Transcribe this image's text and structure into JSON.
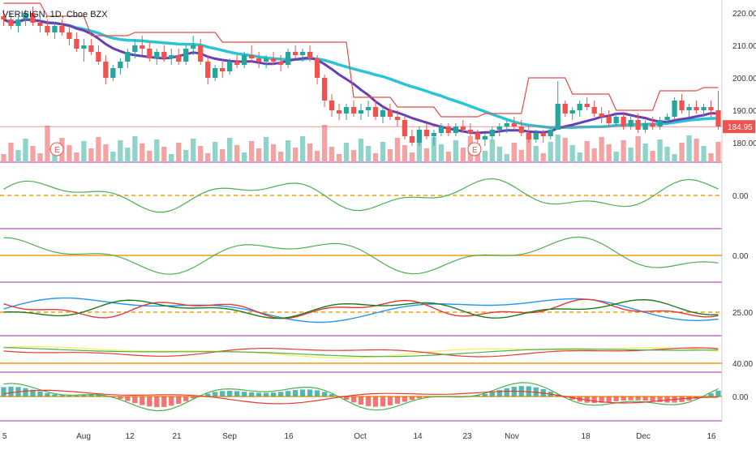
{
  "colors": {
    "up": "#26a69a",
    "down": "#ef5350",
    "vol_up": "#8fd3cb",
    "vol_down": "#f4a3a3",
    "ma_fast": "#6a3fb5",
    "ma_slow": "#2bc4d6",
    "trail": "#e84a4a",
    "support": "#26a65b",
    "divider": "#9c27b0",
    "zero_dash": "#f39c12",
    "osc_green": "#4caf50",
    "orange": "#f39c12",
    "blue": "#2196f3",
    "red": "#e53935",
    "dark_green": "#1b7a1b",
    "yellow": "#f5f06a",
    "price_label": "#ef5350"
  },
  "header": {
    "symbol": "VERISIGN, 1D, Cboe BZX"
  },
  "price_tag": "184.95",
  "time_axis": [
    "5",
    "Aug",
    "12",
    "21",
    "Sep",
    "16",
    "Oct",
    "14",
    "23",
    "Nov",
    "18",
    "Dec",
    "16"
  ],
  "earnings": [
    {
      "label": "E"
    },
    {
      "label": "E"
    }
  ],
  "chart_data": [
    {
      "type": "candlestick",
      "title": "VERISIGN, 1D, Cboe BZX",
      "y_ticks": [
        180,
        190,
        200,
        210,
        220
      ],
      "ylim": [
        174,
        224
      ],
      "last_price": 184.95,
      "candles": [
        [
          219,
          221,
          216,
          218
        ],
        [
          218,
          220,
          215,
          216
        ],
        [
          216,
          219,
          214,
          218
        ],
        [
          218,
          221,
          216,
          220
        ],
        [
          220,
          222,
          216,
          217
        ],
        [
          217,
          219,
          214,
          216
        ],
        [
          216,
          218,
          213,
          214
        ],
        [
          214,
          217,
          212,
          216
        ],
        [
          216,
          218,
          213,
          214
        ],
        [
          214,
          216,
          210,
          212
        ],
        [
          212,
          214,
          208,
          209
        ],
        [
          209,
          212,
          205,
          210
        ],
        [
          210,
          212,
          207,
          208
        ],
        [
          208,
          210,
          204,
          205
        ],
        [
          205,
          207,
          198,
          200
        ],
        [
          200,
          204,
          199,
          203
        ],
        [
          203,
          206,
          201,
          205
        ],
        [
          205,
          209,
          203,
          208
        ],
        [
          208,
          212,
          206,
          210
        ],
        [
          210,
          213,
          207,
          209
        ],
        [
          209,
          211,
          205,
          206
        ],
        [
          206,
          209,
          204,
          208
        ],
        [
          208,
          210,
          205,
          206
        ],
        [
          206,
          209,
          204,
          207
        ],
        [
          207,
          209,
          204,
          205
        ],
        [
          205,
          210,
          204,
          209
        ],
        [
          209,
          213,
          207,
          210
        ],
        [
          210,
          212,
          204,
          205
        ],
        [
          205,
          207,
          198,
          200
        ],
        [
          200,
          204,
          199,
          203
        ],
        [
          203,
          205,
          200,
          202
        ],
        [
          202,
          206,
          201,
          205
        ],
        [
          205,
          207,
          203,
          204
        ],
        [
          204,
          208,
          203,
          207
        ],
        [
          207,
          210,
          205,
          206
        ],
        [
          206,
          208,
          203,
          205
        ],
        [
          205,
          207,
          203,
          206
        ],
        [
          206,
          208,
          204,
          205
        ],
        [
          205,
          207,
          202,
          204
        ],
        [
          204,
          209,
          203,
          208
        ],
        [
          208,
          210,
          206,
          207
        ],
        [
          207,
          209,
          205,
          208
        ],
        [
          208,
          210,
          205,
          206
        ],
        [
          206,
          207,
          198,
          200
        ],
        [
          200,
          201,
          191,
          193
        ],
        [
          193,
          195,
          188,
          190
        ],
        [
          190,
          192,
          187,
          189
        ],
        [
          189,
          192,
          187,
          191
        ],
        [
          191,
          193,
          188,
          189
        ],
        [
          189,
          192,
          187,
          190
        ],
        [
          190,
          193,
          188,
          191
        ],
        [
          191,
          193,
          187,
          188
        ],
        [
          188,
          191,
          186,
          190
        ],
        [
          190,
          192,
          187,
          188
        ],
        [
          188,
          190,
          185,
          187
        ],
        [
          187,
          188,
          181,
          182
        ],
        [
          182,
          184,
          179,
          180
        ],
        [
          180,
          185,
          179,
          184
        ],
        [
          184,
          186,
          181,
          182
        ],
        [
          182,
          184,
          179,
          183
        ],
        [
          183,
          186,
          182,
          185
        ],
        [
          185,
          186,
          182,
          183
        ],
        [
          183,
          186,
          182,
          185
        ],
        [
          185,
          187,
          183,
          184
        ],
        [
          184,
          186,
          182,
          183
        ],
        [
          183,
          184,
          180,
          181
        ],
        [
          181,
          183,
          179,
          182
        ],
        [
          182,
          185,
          181,
          184
        ],
        [
          184,
          186,
          182,
          185
        ],
        [
          185,
          187,
          183,
          186
        ],
        [
          186,
          188,
          184,
          185
        ],
        [
          185,
          187,
          182,
          183
        ],
        [
          183,
          185,
          180,
          181
        ],
        [
          181,
          184,
          180,
          183
        ],
        [
          183,
          184,
          180,
          182
        ],
        [
          182,
          185,
          181,
          184
        ],
        [
          184,
          199,
          184,
          192
        ],
        [
          192,
          193,
          188,
          189
        ],
        [
          189,
          191,
          187,
          190
        ],
        [
          190,
          193,
          188,
          192
        ],
        [
          192,
          194,
          190,
          191
        ],
        [
          191,
          193,
          188,
          189
        ],
        [
          189,
          191,
          186,
          188
        ],
        [
          188,
          190,
          185,
          186
        ],
        [
          186,
          189,
          185,
          188
        ],
        [
          188,
          189,
          184,
          185
        ],
        [
          185,
          188,
          184,
          187
        ],
        [
          187,
          189,
          183,
          184
        ],
        [
          184,
          187,
          183,
          186
        ],
        [
          186,
          188,
          184,
          185
        ],
        [
          185,
          188,
          184,
          187
        ],
        [
          187,
          189,
          186,
          188
        ],
        [
          188,
          194,
          187,
          193
        ],
        [
          193,
          195,
          189,
          190
        ],
        [
          190,
          192,
          188,
          191
        ],
        [
          191,
          193,
          189,
          190
        ],
        [
          190,
          192,
          188,
          191
        ],
        [
          191,
          193,
          188,
          190
        ],
        [
          190,
          196,
          184,
          185
        ]
      ]
    },
    {
      "type": "line",
      "name": "oscillator-1",
      "zero_label": "0.00"
    },
    {
      "type": "line",
      "name": "oscillator-2",
      "zero_label": "0.00"
    },
    {
      "type": "line",
      "name": "oscillator-3",
      "level_label": "25.00"
    },
    {
      "type": "line",
      "name": "oscillator-4",
      "level_label": "40.00"
    },
    {
      "type": "histogram",
      "name": "oscillator-5",
      "zero_label": "0.00"
    }
  ]
}
